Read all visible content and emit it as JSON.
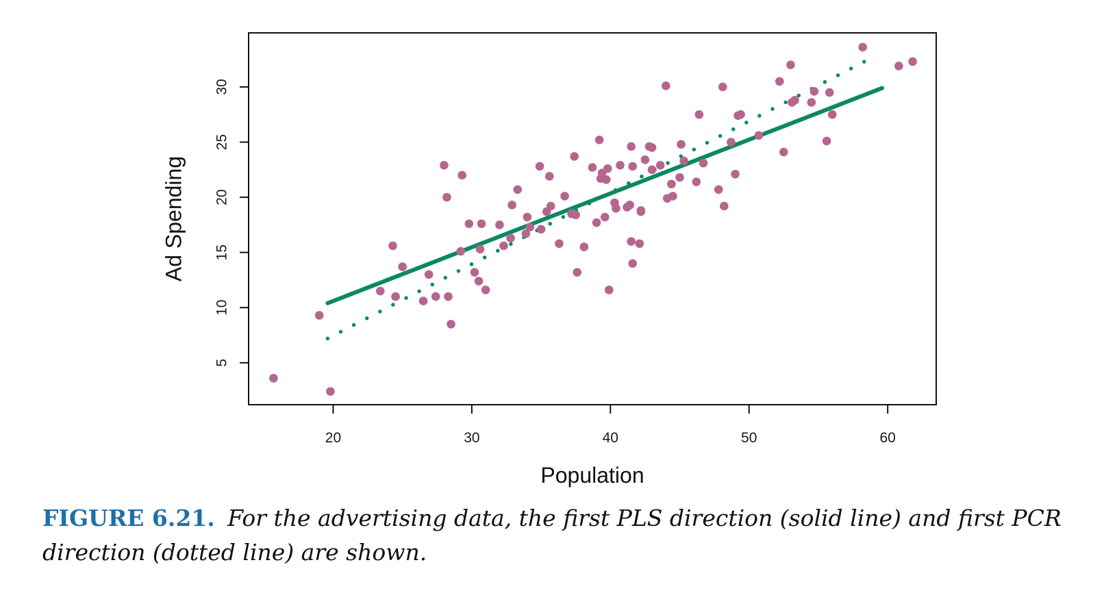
{
  "chart_data": {
    "type": "scatter",
    "xlabel": "Population",
    "ylabel": "Ad Spending",
    "xlim": [
      13.9,
      63.5
    ],
    "ylim": [
      1.2,
      34.9
    ],
    "x_ticks": [
      20,
      30,
      40,
      50,
      60
    ],
    "y_ticks": [
      5,
      10,
      15,
      20,
      25,
      30
    ],
    "grid": false,
    "points_color": "#b5668f",
    "pls_color": "#0a8a5e",
    "pcr_color": "#0a8a5e",
    "points": [
      [
        15.7,
        3.6
      ],
      [
        19.8,
        2.4
      ],
      [
        19.0,
        9.3
      ],
      [
        23.4,
        11.5
      ],
      [
        24.3,
        15.6
      ],
      [
        24.5,
        11.0
      ],
      [
        25.0,
        13.7
      ],
      [
        26.5,
        10.6
      ],
      [
        26.9,
        13.0
      ],
      [
        27.4,
        11.0
      ],
      [
        28.0,
        22.9
      ],
      [
        28.2,
        20.0
      ],
      [
        28.3,
        11.0
      ],
      [
        28.5,
        8.5
      ],
      [
        29.2,
        15.1
      ],
      [
        29.3,
        22.0
      ],
      [
        29.8,
        17.6
      ],
      [
        30.2,
        13.2
      ],
      [
        30.5,
        12.4
      ],
      [
        30.6,
        15.3
      ],
      [
        30.7,
        17.6
      ],
      [
        31.0,
        11.6
      ],
      [
        32.0,
        17.5
      ],
      [
        32.3,
        15.6
      ],
      [
        32.8,
        16.3
      ],
      [
        32.9,
        19.3
      ],
      [
        33.3,
        20.7
      ],
      [
        33.9,
        16.7
      ],
      [
        34.0,
        18.2
      ],
      [
        34.2,
        17.3
      ],
      [
        34.9,
        22.8
      ],
      [
        35.0,
        17.1
      ],
      [
        35.4,
        18.7
      ],
      [
        35.6,
        21.9
      ],
      [
        35.7,
        19.2
      ],
      [
        36.3,
        15.8
      ],
      [
        36.7,
        20.1
      ],
      [
        37.2,
        18.5
      ],
      [
        37.4,
        23.7
      ],
      [
        37.5,
        18.4
      ],
      [
        37.6,
        13.2
      ],
      [
        38.1,
        15.5
      ],
      [
        38.7,
        22.7
      ],
      [
        39.0,
        17.7
      ],
      [
        39.2,
        25.2
      ],
      [
        39.3,
        21.7
      ],
      [
        39.4,
        22.2
      ],
      [
        39.6,
        18.2
      ],
      [
        39.7,
        21.6
      ],
      [
        39.8,
        22.6
      ],
      [
        39.9,
        11.6
      ],
      [
        40.3,
        19.5
      ],
      [
        40.4,
        19.0
      ],
      [
        40.7,
        22.9
      ],
      [
        41.2,
        19.1
      ],
      [
        41.4,
        19.3
      ],
      [
        41.5,
        24.6
      ],
      [
        41.5,
        16.0
      ],
      [
        41.6,
        22.8
      ],
      [
        41.6,
        14.0
      ],
      [
        42.1,
        15.8
      ],
      [
        42.2,
        18.8
      ],
      [
        42.2,
        18.7
      ],
      [
        42.5,
        23.4
      ],
      [
        42.8,
        24.6
      ],
      [
        43.0,
        24.5
      ],
      [
        43.0,
        22.5
      ],
      [
        43.6,
        22.9
      ],
      [
        44.0,
        30.1
      ],
      [
        44.1,
        19.9
      ],
      [
        44.4,
        21.2
      ],
      [
        44.5,
        20.1
      ],
      [
        45.0,
        21.8
      ],
      [
        45.1,
        24.8
      ],
      [
        45.3,
        23.3
      ],
      [
        46.2,
        21.4
      ],
      [
        46.4,
        27.5
      ],
      [
        46.7,
        23.1
      ],
      [
        47.8,
        20.7
      ],
      [
        48.1,
        30.0
      ],
      [
        48.2,
        19.2
      ],
      [
        48.7,
        25.0
      ],
      [
        49.0,
        22.1
      ],
      [
        49.2,
        27.4
      ],
      [
        49.4,
        27.5
      ],
      [
        50.7,
        25.6
      ],
      [
        52.2,
        30.5
      ],
      [
        52.5,
        24.1
      ],
      [
        53.0,
        32.0
      ],
      [
        53.1,
        28.6
      ],
      [
        53.3,
        28.8
      ],
      [
        54.5,
        28.6
      ],
      [
        54.7,
        29.6
      ],
      [
        55.6,
        25.1
      ],
      [
        55.8,
        29.5
      ],
      [
        56.0,
        27.5
      ],
      [
        58.2,
        33.6
      ],
      [
        60.8,
        31.9
      ],
      [
        61.8,
        32.3
      ]
    ],
    "series": [
      {
        "style": "solid",
        "x": [
          19.6,
          59.6
        ],
        "y": [
          10.4,
          29.9
        ]
      },
      {
        "style": "dotted",
        "x": [
          19.6,
          59.1
        ],
        "y": [
          7.2,
          32.8
        ]
      }
    ]
  },
  "caption": {
    "label": "FIGURE 6.21.",
    "text": "For the advertising data, the first PLS direction (solid line) and first PCR direction (dotted line) are shown."
  }
}
